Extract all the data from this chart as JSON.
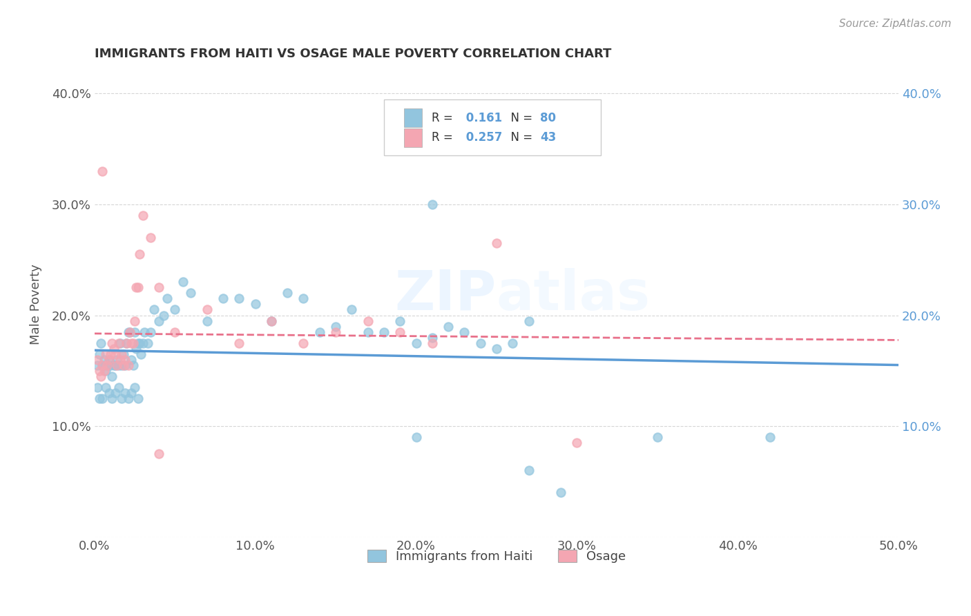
{
  "title": "IMMIGRANTS FROM HAITI VS OSAGE MALE POVERTY CORRELATION CHART",
  "source": "Source: ZipAtlas.com",
  "ylabel": "Male Poverty",
  "xlim": [
    0.0,
    0.5
  ],
  "ylim": [
    0.0,
    0.42
  ],
  "xticks": [
    0.0,
    0.1,
    0.2,
    0.3,
    0.4,
    0.5
  ],
  "xticklabels": [
    "0.0%",
    "10.0%",
    "20.0%",
    "30.0%",
    "40.0%",
    "50.0%"
  ],
  "yticks": [
    0.0,
    0.1,
    0.2,
    0.3,
    0.4
  ],
  "yticklabels": [
    "",
    "10.0%",
    "20.0%",
    "30.0%",
    "40.0%"
  ],
  "haiti_color": "#92C5DE",
  "osage_color": "#F4A6B2",
  "haiti_line_color": "#5B9BD5",
  "osage_line_color": "#E8708A",
  "haiti_R": 0.161,
  "haiti_N": 80,
  "osage_R": 0.257,
  "osage_N": 43,
  "legend_labels": [
    "Immigrants from Haiti",
    "Osage"
  ],
  "haiti_scatter_x": [
    0.002,
    0.003,
    0.004,
    0.005,
    0.006,
    0.007,
    0.008,
    0.009,
    0.01,
    0.011,
    0.012,
    0.013,
    0.014,
    0.015,
    0.016,
    0.017,
    0.018,
    0.019,
    0.02,
    0.021,
    0.022,
    0.023,
    0.024,
    0.025,
    0.026,
    0.027,
    0.028,
    0.029,
    0.03,
    0.031,
    0.033,
    0.035,
    0.037,
    0.04,
    0.043,
    0.045,
    0.05,
    0.055,
    0.06,
    0.07,
    0.08,
    0.09,
    0.1,
    0.11,
    0.12,
    0.13,
    0.14,
    0.15,
    0.16,
    0.17,
    0.18,
    0.19,
    0.2,
    0.21,
    0.22,
    0.23,
    0.24,
    0.25,
    0.26,
    0.27,
    0.002,
    0.003,
    0.005,
    0.007,
    0.009,
    0.011,
    0.013,
    0.015,
    0.017,
    0.019,
    0.021,
    0.023,
    0.025,
    0.027,
    0.2,
    0.27,
    0.29,
    0.21,
    0.35,
    0.42
  ],
  "haiti_scatter_y": [
    0.155,
    0.165,
    0.175,
    0.155,
    0.16,
    0.15,
    0.155,
    0.16,
    0.155,
    0.145,
    0.155,
    0.155,
    0.16,
    0.155,
    0.175,
    0.155,
    0.165,
    0.155,
    0.175,
    0.185,
    0.185,
    0.16,
    0.155,
    0.185,
    0.17,
    0.175,
    0.175,
    0.165,
    0.175,
    0.185,
    0.175,
    0.185,
    0.205,
    0.195,
    0.2,
    0.215,
    0.205,
    0.23,
    0.22,
    0.195,
    0.215,
    0.215,
    0.21,
    0.195,
    0.22,
    0.215,
    0.185,
    0.19,
    0.205,
    0.185,
    0.185,
    0.195,
    0.175,
    0.18,
    0.19,
    0.185,
    0.175,
    0.17,
    0.175,
    0.195,
    0.135,
    0.125,
    0.125,
    0.135,
    0.13,
    0.125,
    0.13,
    0.135,
    0.125,
    0.13,
    0.125,
    0.13,
    0.135,
    0.125,
    0.09,
    0.06,
    0.04,
    0.3,
    0.09,
    0.09
  ],
  "osage_scatter_x": [
    0.002,
    0.003,
    0.004,
    0.005,
    0.006,
    0.007,
    0.008,
    0.009,
    0.01,
    0.011,
    0.012,
    0.013,
    0.014,
    0.015,
    0.016,
    0.017,
    0.018,
    0.019,
    0.02,
    0.021,
    0.022,
    0.023,
    0.024,
    0.025,
    0.026,
    0.027,
    0.028,
    0.03,
    0.035,
    0.04,
    0.05,
    0.07,
    0.09,
    0.11,
    0.13,
    0.15,
    0.17,
    0.19,
    0.21,
    0.25,
    0.005,
    0.3,
    0.04
  ],
  "osage_scatter_y": [
    0.16,
    0.15,
    0.145,
    0.155,
    0.15,
    0.165,
    0.155,
    0.16,
    0.165,
    0.175,
    0.17,
    0.165,
    0.155,
    0.175,
    0.16,
    0.165,
    0.155,
    0.16,
    0.175,
    0.155,
    0.185,
    0.175,
    0.175,
    0.195,
    0.225,
    0.225,
    0.255,
    0.29,
    0.27,
    0.225,
    0.185,
    0.205,
    0.175,
    0.195,
    0.175,
    0.185,
    0.195,
    0.185,
    0.175,
    0.265,
    0.33,
    0.085,
    0.075
  ]
}
